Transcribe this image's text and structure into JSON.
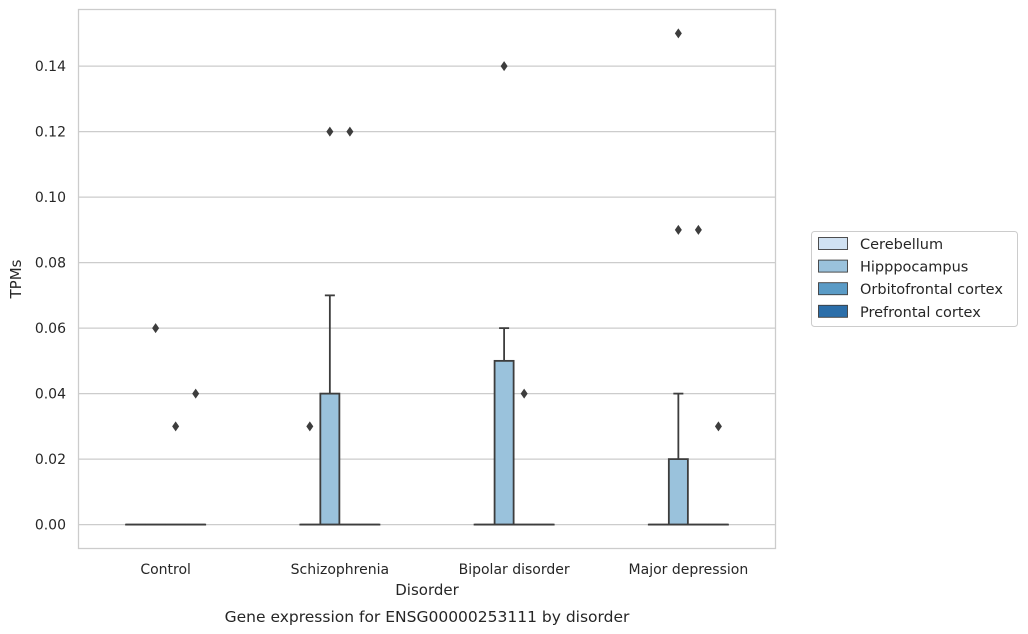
{
  "chart_data": {
    "type": "box",
    "xlabel": "Disorder",
    "ylabel": "TPMs",
    "caption": "Gene expression for ENSG00000253111 by disorder",
    "categories": [
      "Control",
      "Schizophrenia",
      "Bipolar disorder",
      "Major depression"
    ],
    "ylim": [
      -0.0073,
      0.1573
    ],
    "yticks": [
      0.0,
      0.02,
      0.04,
      0.06,
      0.08,
      0.1,
      0.12,
      0.14
    ],
    "ytick_labels": [
      "0.00",
      "0.02",
      "0.04",
      "0.06",
      "0.08",
      "0.10",
      "0.12",
      "0.14"
    ],
    "grid": "horizontal",
    "legend_position": "right",
    "series": [
      {
        "name": "Cerebellum",
        "color": "#d0e1f2",
        "boxes": [
          {
            "q1": 0,
            "median": 0,
            "q3": 0,
            "whisker_low": 0,
            "whisker_high": 0,
            "outliers": []
          },
          {
            "q1": 0,
            "median": 0,
            "q3": 0,
            "whisker_low": 0,
            "whisker_high": 0,
            "outliers": []
          },
          {
            "q1": 0,
            "median": 0,
            "q3": 0,
            "whisker_low": 0,
            "whisker_high": 0,
            "outliers": []
          },
          {
            "q1": 0,
            "median": 0,
            "q3": 0,
            "whisker_low": 0,
            "whisker_high": 0,
            "outliers": []
          }
        ]
      },
      {
        "name": "Hipppocampus",
        "color": "#9ac2dc",
        "boxes": [
          {
            "q1": 0,
            "median": 0,
            "q3": 0,
            "whisker_low": 0,
            "whisker_high": 0,
            "outliers": [
              0.06
            ]
          },
          {
            "q1": 0,
            "median": 0,
            "q3": 0.04,
            "whisker_low": 0,
            "whisker_high": 0.07,
            "outliers": [
              0.12
            ]
          },
          {
            "q1": 0,
            "median": 0,
            "q3": 0.05,
            "whisker_low": 0,
            "whisker_high": 0.06,
            "outliers": [
              0.14
            ]
          },
          {
            "q1": 0,
            "median": 0,
            "q3": 0.02,
            "whisker_low": 0,
            "whisker_high": 0.04,
            "outliers": [
              0.15,
              0.09
            ]
          }
        ]
      },
      {
        "name": "Orbitofrontal cortex",
        "color": "#5a9bc6",
        "boxes": [
          {
            "q1": 0,
            "median": 0,
            "q3": 0,
            "whisker_low": 0,
            "whisker_high": 0,
            "outliers": [
              0.03
            ]
          },
          {
            "q1": 0,
            "median": 0,
            "q3": 0,
            "whisker_low": 0,
            "whisker_high": 0,
            "outliers": [
              0.12
            ]
          },
          {
            "q1": 0,
            "median": 0,
            "q3": 0,
            "whisker_low": 0,
            "whisker_high": 0,
            "outliers": [
              0.04
            ]
          },
          {
            "q1": 0,
            "median": 0,
            "q3": 0,
            "whisker_low": 0,
            "whisker_high": 0,
            "outliers": [
              0.09
            ]
          }
        ]
      },
      {
        "name": "Prefrontal cortex",
        "color": "#2b6ea9",
        "boxes": [
          {
            "q1": 0,
            "median": 0,
            "q3": 0,
            "whisker_low": 0,
            "whisker_high": 0,
            "outliers": [
              0.04
            ]
          },
          {
            "q1": 0,
            "median": 0,
            "q3": 0,
            "whisker_low": 0,
            "whisker_high": 0,
            "outliers": []
          },
          {
            "q1": 0,
            "median": 0,
            "q3": 0,
            "whisker_low": 0,
            "whisker_high": 0,
            "outliers": []
          },
          {
            "q1": 0,
            "median": 0,
            "q3": 0,
            "whisker_low": 0,
            "whisker_high": 0,
            "outliers": [
              0.03
            ]
          }
        ]
      }
    ],
    "extra_outliers": [
      {
        "category_index": 1,
        "series_index": 0,
        "value": 0.03
      }
    ],
    "colors": {
      "grid": "#cccccc",
      "frame": "#cccccc",
      "line": "#3d3d3d",
      "text": "#262626"
    }
  }
}
